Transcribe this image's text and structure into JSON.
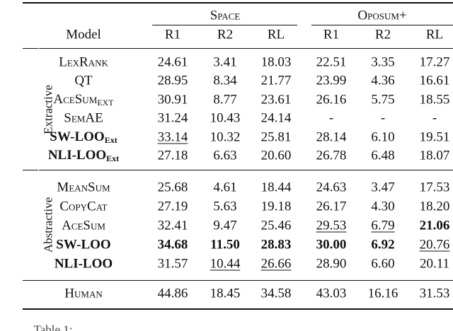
{
  "table": {
    "groups": [
      "Space",
      "Oposum+"
    ],
    "columns": [
      "Model",
      "R1",
      "R2",
      "RL",
      "R1",
      "R2",
      "RL"
    ],
    "sections": [
      {
        "label": "Extractive",
        "rows": [
          {
            "model": {
              "text": "LexRank",
              "small_caps": true
            },
            "cells": [
              "24.61",
              "3.41",
              "18.03",
              "22.51",
              "3.35",
              "17.27"
            ]
          },
          {
            "model": {
              "text": "QT"
            },
            "cells": [
              "28.95",
              "8.34",
              "21.77",
              "23.99",
              "4.36",
              "16.61"
            ]
          },
          {
            "model": {
              "text": "AceSum",
              "sub": "EXT",
              "small_caps": true
            },
            "cells": [
              "30.91",
              "8.77",
              "23.61",
              "26.16",
              "5.75",
              "18.55"
            ]
          },
          {
            "model": {
              "text": "SemAE",
              "small_caps": true
            },
            "cells": [
              "31.24",
              "10.43",
              "24.14",
              "-",
              "-",
              "-"
            ]
          },
          {
            "model": {
              "text": "SW-LOO",
              "sub": "Ext",
              "bold": true
            },
            "cells": [
              {
                "text": "33.14",
                "underline": true
              },
              "10.32",
              "25.81",
              "28.14",
              "6.10",
              "19.51"
            ]
          },
          {
            "model": {
              "text": "NLI-LOO",
              "sub": "Ext",
              "bold": true
            },
            "cells": [
              "27.18",
              "6.63",
              "20.60",
              "26.78",
              "6.48",
              "18.07"
            ]
          }
        ]
      },
      {
        "label": "Abstractive",
        "rows": [
          {
            "model": {
              "text": "MeanSum",
              "small_caps": true
            },
            "cells": [
              "25.68",
              "4.61",
              "18.44",
              "24.63",
              "3.47",
              "17.53"
            ]
          },
          {
            "model": {
              "text": "CopyCat",
              "small_caps": true
            },
            "cells": [
              "27.19",
              "5.63",
              "19.18",
              "26.17",
              "4.30",
              "18.20"
            ]
          },
          {
            "model": {
              "text": "AceSum",
              "small_caps": true
            },
            "cells": [
              "32.41",
              "9.47",
              "25.46",
              {
                "text": "29.53",
                "underline": true
              },
              {
                "text": "6.79",
                "underline": true
              },
              {
                "text": "21.06",
                "bold": true
              }
            ]
          },
          {
            "model": {
              "text": "SW-LOO",
              "bold": true
            },
            "cells": [
              {
                "text": "34.68",
                "bold": true
              },
              {
                "text": "11.50",
                "bold": true
              },
              {
                "text": "28.83",
                "bold": true
              },
              {
                "text": "30.00",
                "bold": true
              },
              {
                "text": "6.92",
                "bold": true
              },
              {
                "text": "20.76",
                "underline": true
              }
            ]
          },
          {
            "model": {
              "text": "NLI-LOO",
              "bold": true
            },
            "cells": [
              "31.57",
              {
                "text": "10.44",
                "underline": true
              },
              {
                "text": "26.66",
                "underline": true
              },
              "28.90",
              "6.60",
              "20.11"
            ]
          }
        ]
      }
    ],
    "final_row": {
      "model": {
        "text": "Human",
        "small_caps": true
      },
      "cells": [
        "44.86",
        "18.45",
        "34.58",
        "43.03",
        "16.16",
        "31.53"
      ]
    },
    "caption": "Table 1:"
  }
}
